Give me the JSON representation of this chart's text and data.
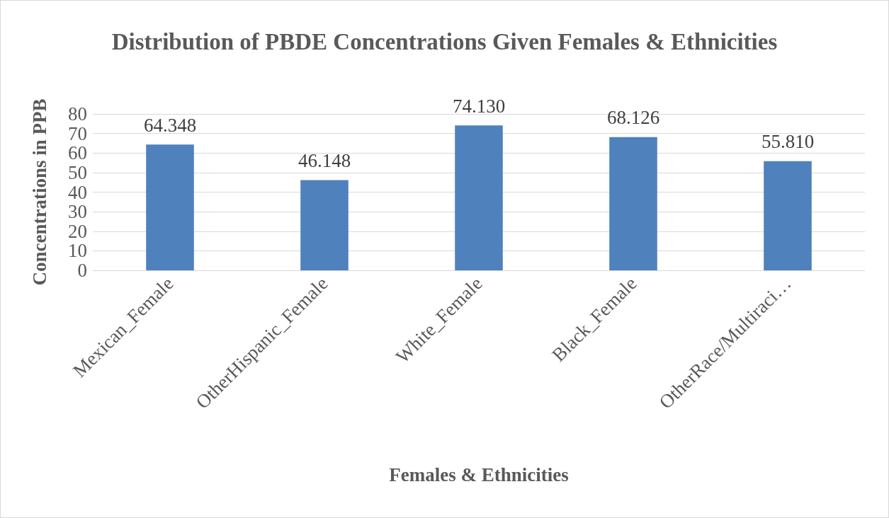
{
  "chart_data": {
    "type": "bar",
    "title": "Distribution of PBDE Concentrations Given Females & Ethnicities",
    "xlabel": "Females & Ethnicities",
    "ylabel": "Concentrations in PPB",
    "categories": [
      "Mexican_Female",
      "OtherHispanic_Female",
      "White_Female",
      "Black_Female",
      "OtherRace/Multiraci…"
    ],
    "values": [
      64.348,
      46.148,
      74.13,
      68.126,
      55.81
    ],
    "value_labels": [
      "64.348",
      "46.148",
      "74.130",
      "68.126",
      "55.810"
    ],
    "color": "#4f81bd",
    "ylim": [
      0,
      80
    ],
    "yticks": [
      0,
      10,
      20,
      30,
      40,
      50,
      60,
      70,
      80
    ],
    "grid": "y"
  }
}
